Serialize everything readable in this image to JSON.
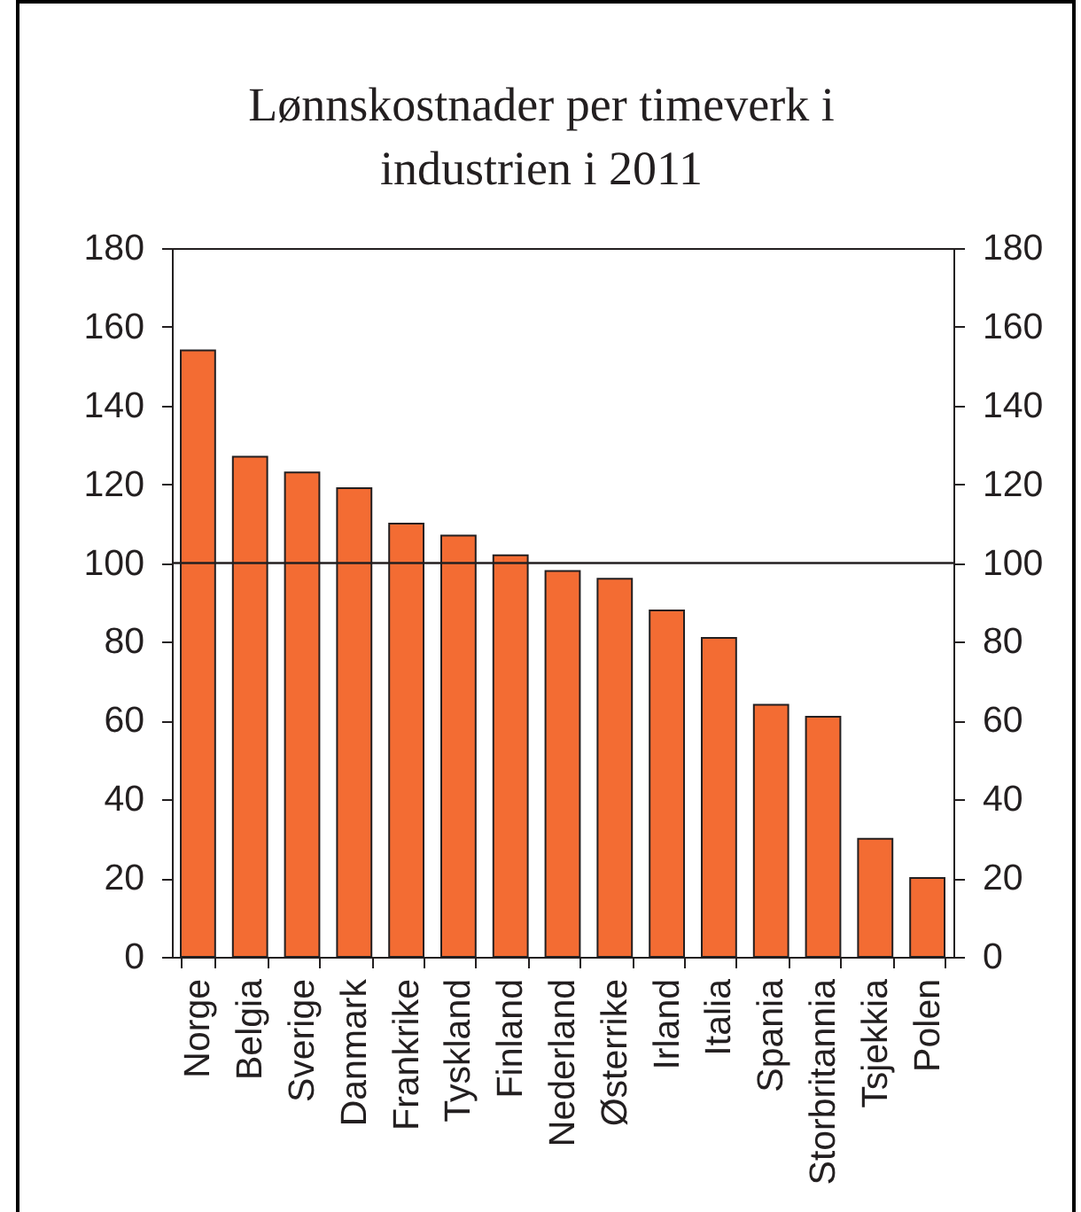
{
  "chart_data": {
    "type": "bar",
    "title": "Lønnskostnader per timeverk i industrien i 2011",
    "categories": [
      "Norge",
      "Belgia",
      "Sverige",
      "Danmark",
      "Frankrike",
      "Tyskland",
      "Finland",
      "Nederland",
      "Østerrike",
      "Irland",
      "Italia",
      "Spania",
      "Storbritannia",
      "Tsjekkia",
      "Polen"
    ],
    "values": [
      154,
      127,
      123,
      119,
      110,
      107,
      102,
      98,
      96,
      88,
      81,
      64,
      61,
      30,
      20
    ],
    "color": "#f36c33",
    "ylim": [
      0,
      180
    ],
    "yticks": [
      0,
      20,
      40,
      60,
      80,
      100,
      120,
      140,
      160,
      180
    ],
    "y2lim": [
      0,
      180
    ],
    "y2ticks": [
      0,
      20,
      40,
      60,
      80,
      100,
      120,
      140,
      160,
      180
    ],
    "ref_lines": [
      {
        "axis": "y",
        "value": 100,
        "color": "#231f20"
      }
    ]
  }
}
